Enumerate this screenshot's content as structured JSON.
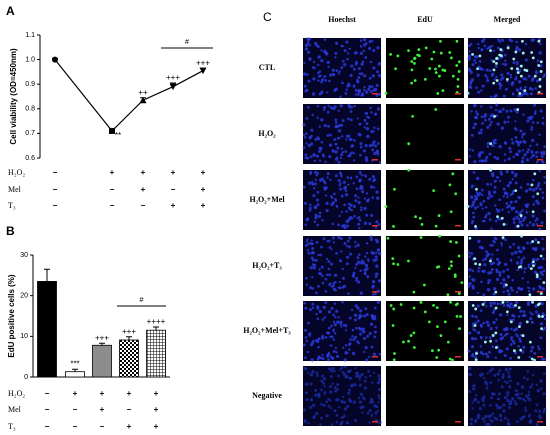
{
  "chart_data": [
    {
      "type": "line",
      "panel": "A",
      "y_label": "Cell viability (OD=450nm)",
      "categories": [
        null,
        null,
        null,
        null,
        null
      ],
      "values": [
        1.0,
        0.71,
        0.835,
        0.89,
        0.955
      ],
      "errors": [
        0.005,
        0.01,
        0.01,
        0.015,
        0.01
      ],
      "markers": [
        "circle",
        "square",
        "triangle-up",
        "triangle-down",
        "triangle-down"
      ],
      "color": "#000000",
      "annotations": [
        null,
        "**",
        "++",
        "+++",
        "+++"
      ],
      "bracket_label": "#",
      "ylim": [
        0.6,
        1.1
      ],
      "yticks": [
        0.6,
        0.7,
        0.8,
        0.9,
        {
          "value": 1,
          "label": "1.0"
        },
        1.1
      ],
      "treatments": [
        {
          "name": "H₂O₂",
          "marks": [
            "−",
            "+",
            "+",
            "+",
            "+"
          ]
        },
        {
          "name": "Mel",
          "marks": [
            "−",
            "−",
            "+",
            "−",
            "+"
          ]
        },
        {
          "name": "T₃",
          "marks": [
            "−",
            "−",
            "−",
            "+",
            "+"
          ]
        }
      ]
    },
    {
      "type": "bar",
      "panel": "B",
      "y_label": "EdU positive cells (%)",
      "categories": [
        null,
        null,
        null,
        null,
        null
      ],
      "values": [
        23.5,
        1.3,
        7.8,
        9.1,
        11.5
      ],
      "errors": [
        3.0,
        0.6,
        0.5,
        0.8,
        0.8
      ],
      "colors": [
        "#000000",
        "#ffffff",
        "#8c8c8c",
        "#ffffff",
        "#ffffff"
      ],
      "hatches": [
        null,
        null,
        null,
        "checker",
        "grid"
      ],
      "annotations": [
        null,
        "***",
        "+++",
        "+++",
        "++++"
      ],
      "bracket_label": "#",
      "ylim": [
        0,
        30
      ],
      "yticks": [
        0,
        10,
        20,
        30
      ],
      "treatments": [
        {
          "name": "H₂O₂",
          "marks": [
            "−",
            "+",
            "+",
            "+",
            "+"
          ]
        },
        {
          "name": "Mel",
          "marks": [
            "−",
            "−",
            "+",
            "−",
            "+"
          ]
        },
        {
          "name": "T₃",
          "marks": [
            "−",
            "−",
            "−",
            "+",
            "+"
          ]
        }
      ]
    }
  ],
  "panel_c": {
    "label": "C",
    "columns": [
      "Hoechst",
      "EdU",
      "Merged"
    ],
    "rows": [
      "CTL",
      "H₂O₂",
      "H₂O₂+Mel",
      "H₂O₂+T₃",
      "H₂O₂+Mel+T₃",
      "Negative"
    ]
  }
}
